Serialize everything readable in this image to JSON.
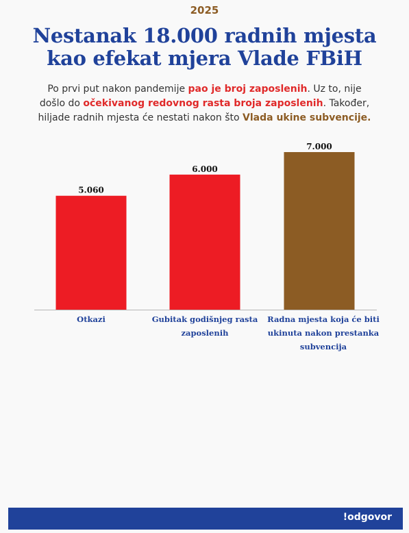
{
  "header": {
    "year": "2025",
    "title_line1": "Nestanak 18.000 radnih mjesta",
    "title_line2": "kao efekat mjera Vlade FBiH"
  },
  "subtitle": {
    "l1_a": "Po prvi put nakon pandemije ",
    "l1_b": "pao je broj zaposlenih",
    "l1_c": ". Uz to, nije",
    "l2_a": "došlo do ",
    "l2_b": "očekivanog redovnog rasta broja zaposlenih",
    "l2_c": ". Također,",
    "l3_a": "hiljade radnih mjesta će nestati nakon što ",
    "l3_b": "Vlada ukine subvencije."
  },
  "chart_data": {
    "type": "bar",
    "categories": [
      [
        "Otkazi"
      ],
      [
        "Gubitak godišnjeg rasta",
        "zaposlenih"
      ],
      [
        "Radna mjesta koja će biti",
        "ukinuta nakon prestanka",
        "subvencija"
      ]
    ],
    "values": [
      5060,
      6000,
      7000
    ],
    "value_labels": [
      "5.060",
      "6.000",
      "7.000"
    ],
    "colors": [
      "#ed1c24",
      "#ed1c24",
      "#8c5c24"
    ],
    "ylim": [
      0,
      7000
    ],
    "grid": false
  },
  "footer": {
    "brand": "!odgovor",
    "background": "#20429a"
  }
}
